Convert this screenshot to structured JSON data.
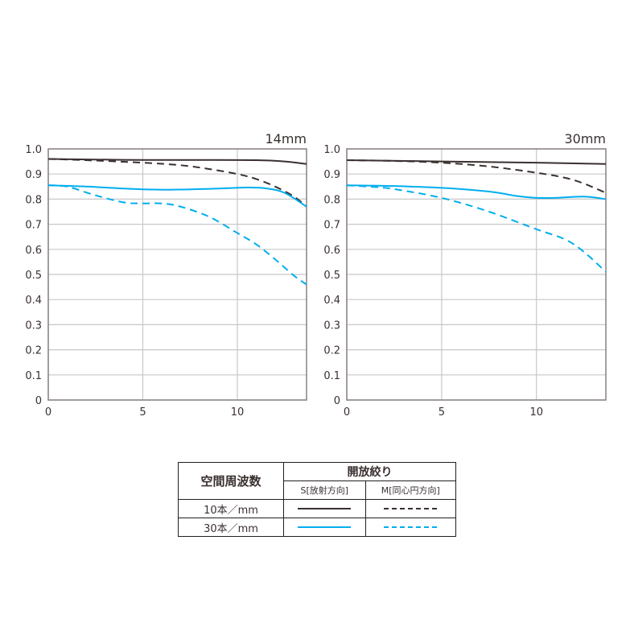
{
  "colors": {
    "freq10": "#3a3030",
    "freq30": "#00aeef",
    "grid": "#c8c8c8",
    "frame": "#8a8080"
  },
  "chart_data": [
    {
      "type": "line",
      "title": "14mm",
      "xlim": [
        0,
        13.66
      ],
      "ylim": [
        0,
        1.0
      ],
      "grid": true,
      "xticks": [
        "0",
        "5",
        "10"
      ],
      "yticks": [
        "0",
        "0.1",
        "0.2",
        "0.3",
        "0.4",
        "0.5",
        "0.6",
        "0.7",
        "0.8",
        "0.9",
        "1.0"
      ],
      "series": [
        {
          "key": "S10",
          "style": "solid",
          "color": "freq10",
          "x": [
            0,
            2,
            5,
            8,
            11,
            12.5,
            13.66
          ],
          "y": [
            0.96,
            0.958,
            0.956,
            0.956,
            0.955,
            0.95,
            0.94
          ]
        },
        {
          "key": "M10",
          "style": "dashed",
          "color": "freq10",
          "x": [
            0,
            2,
            5,
            7,
            8.5,
            10,
            11,
            12,
            13,
            13.66
          ],
          "y": [
            0.96,
            0.955,
            0.945,
            0.935,
            0.92,
            0.9,
            0.88,
            0.85,
            0.81,
            0.77
          ]
        },
        {
          "key": "S30",
          "style": "solid",
          "color": "freq30",
          "x": [
            0,
            2,
            4,
            5.5,
            7,
            9,
            10.5,
            11.5,
            12.5,
            13.66
          ],
          "y": [
            0.855,
            0.85,
            0.842,
            0.838,
            0.838,
            0.842,
            0.846,
            0.843,
            0.825,
            0.77
          ]
        },
        {
          "key": "M30",
          "style": "dashed",
          "color": "freq30",
          "x": [
            0,
            1,
            2.5,
            4,
            5,
            6,
            7,
            8.5,
            10,
            11,
            12,
            13,
            13.66
          ],
          "y": [
            0.855,
            0.85,
            0.815,
            0.787,
            0.783,
            0.783,
            0.77,
            0.73,
            0.665,
            0.62,
            0.56,
            0.495,
            0.46
          ]
        }
      ]
    },
    {
      "type": "line",
      "title": "30mm",
      "xlim": [
        0,
        13.66
      ],
      "ylim": [
        0,
        1.0
      ],
      "grid": true,
      "xticks": [
        "0",
        "5",
        "10"
      ],
      "yticks": [
        "0",
        "0.1",
        "0.2",
        "0.3",
        "0.4",
        "0.5",
        "0.6",
        "0.7",
        "0.8",
        "0.9",
        "1.0"
      ],
      "series": [
        {
          "key": "S10",
          "style": "solid",
          "color": "freq10",
          "x": [
            0,
            5,
            10,
            13.66
          ],
          "y": [
            0.955,
            0.95,
            0.945,
            0.94
          ]
        },
        {
          "key": "M10",
          "style": "dashed",
          "color": "freq10",
          "x": [
            0,
            2.5,
            5,
            7.5,
            10,
            11.5,
            12.5,
            13.66
          ],
          "y": [
            0.955,
            0.952,
            0.945,
            0.93,
            0.905,
            0.885,
            0.862,
            0.825
          ]
        },
        {
          "key": "S30",
          "style": "solid",
          "color": "freq30",
          "x": [
            0,
            2.5,
            5,
            7.5,
            9,
            10,
            11,
            12.5,
            13.66
          ],
          "y": [
            0.855,
            0.852,
            0.845,
            0.83,
            0.812,
            0.805,
            0.805,
            0.81,
            0.8
          ]
        },
        {
          "key": "M30",
          "style": "dashed",
          "color": "freq30",
          "x": [
            0,
            1.5,
            2.5,
            5,
            7.5,
            10,
            11.5,
            12.5,
            13.66
          ],
          "y": [
            0.855,
            0.848,
            0.84,
            0.805,
            0.75,
            0.68,
            0.64,
            0.59,
            0.51
          ]
        }
      ]
    }
  ],
  "legend": {
    "freq_header": "空間周波数",
    "aperture_header": "開放絞り",
    "sagittal": "S[放射方向]",
    "meridional": "M[同心円方向]",
    "row10": "10本／mm",
    "row30": "30本／mm"
  }
}
